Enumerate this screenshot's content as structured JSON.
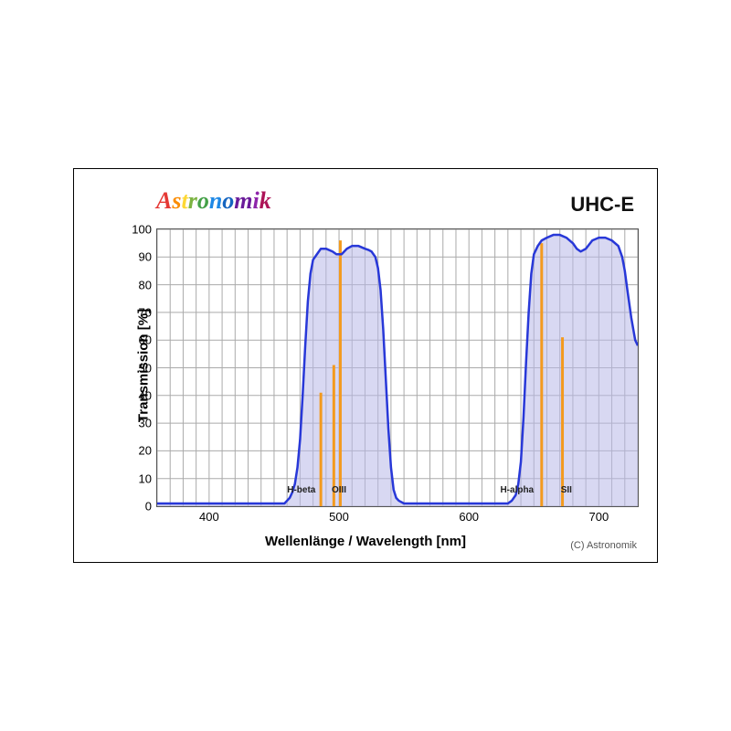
{
  "brand": {
    "text": "Astronomik",
    "colors": [
      "#e53935",
      "#fb8c00",
      "#fdd835",
      "#7cb342",
      "#43a047",
      "#1e88e5",
      "#1565c0",
      "#6a1b9a",
      "#8e24aa",
      "#ad1457"
    ]
  },
  "title_right": "UHC-E",
  "copyright": "(C) Astronomik",
  "axes": {
    "xlabel": "Wellenlänge / Wavelength [nm]",
    "ylabel": "Transmission [%]",
    "xlim": [
      360,
      730
    ],
    "ylim": [
      0,
      100
    ],
    "xticks_major": [
      400,
      500,
      600,
      700
    ],
    "xticks_minor_step": 10,
    "yticks": [
      0,
      10,
      20,
      30,
      40,
      50,
      60,
      70,
      80,
      90,
      100
    ],
    "grid_color": "#aaaaaa",
    "border_color": "#555555"
  },
  "transmission_curve": {
    "type": "line",
    "color": "#2838d8",
    "fill_color": "#b8b8e8",
    "fill_opacity": 0.55,
    "line_width": 2.5,
    "points": [
      [
        360,
        1
      ],
      [
        370,
        1
      ],
      [
        380,
        1
      ],
      [
        390,
        1
      ],
      [
        400,
        1
      ],
      [
        410,
        1
      ],
      [
        415,
        1
      ],
      [
        420,
        1
      ],
      [
        425,
        1
      ],
      [
        430,
        1
      ],
      [
        435,
        1
      ],
      [
        440,
        1
      ],
      [
        445,
        1
      ],
      [
        450,
        1
      ],
      [
        455,
        1
      ],
      [
        458,
        1
      ],
      [
        460,
        2
      ],
      [
        462,
        3
      ],
      [
        464,
        5
      ],
      [
        466,
        8
      ],
      [
        468,
        14
      ],
      [
        470,
        24
      ],
      [
        472,
        40
      ],
      [
        474,
        58
      ],
      [
        476,
        74
      ],
      [
        478,
        84
      ],
      [
        480,
        89
      ],
      [
        483,
        91
      ],
      [
        486,
        93
      ],
      [
        490,
        93
      ],
      [
        495,
        92
      ],
      [
        498,
        91
      ],
      [
        502,
        91
      ],
      [
        506,
        93
      ],
      [
        510,
        94
      ],
      [
        515,
        94
      ],
      [
        520,
        93
      ],
      [
        523,
        92.5
      ],
      [
        525,
        92
      ],
      [
        528,
        90
      ],
      [
        530,
        86
      ],
      [
        532,
        78
      ],
      [
        534,
        64
      ],
      [
        536,
        46
      ],
      [
        538,
        28
      ],
      [
        540,
        14
      ],
      [
        542,
        6
      ],
      [
        544,
        3
      ],
      [
        546,
        2
      ],
      [
        550,
        1
      ],
      [
        560,
        1
      ],
      [
        570,
        1
      ],
      [
        580,
        1
      ],
      [
        590,
        1
      ],
      [
        600,
        1
      ],
      [
        610,
        1
      ],
      [
        620,
        1
      ],
      [
        625,
        1
      ],
      [
        630,
        1
      ],
      [
        633,
        2
      ],
      [
        636,
        4
      ],
      [
        638,
        8
      ],
      [
        640,
        16
      ],
      [
        642,
        32
      ],
      [
        644,
        52
      ],
      [
        646,
        70
      ],
      [
        648,
        84
      ],
      [
        650,
        91
      ],
      [
        653,
        94
      ],
      [
        656,
        96
      ],
      [
        660,
        97
      ],
      [
        665,
        98
      ],
      [
        670,
        98
      ],
      [
        675,
        97
      ],
      [
        680,
        95
      ],
      [
        683,
        93
      ],
      [
        686,
        92
      ],
      [
        690,
        93
      ],
      [
        695,
        96
      ],
      [
        700,
        97
      ],
      [
        705,
        97
      ],
      [
        710,
        96
      ],
      [
        715,
        94
      ],
      [
        718,
        90
      ],
      [
        720,
        85
      ],
      [
        722,
        78
      ],
      [
        725,
        68
      ],
      [
        728,
        60
      ],
      [
        730,
        58
      ]
    ]
  },
  "emission_lines": {
    "type": "bar",
    "color": "#f39a1e",
    "line_width": 3,
    "lines": [
      {
        "name": "H-beta",
        "x": 486,
        "height": 41,
        "label_x": 471,
        "label_y": 5
      },
      {
        "name": "OIII",
        "x": 496,
        "height": 51,
        "label_x": 500,
        "label_y": 5
      },
      {
        "name": "OIII",
        "x": 501,
        "height": 96,
        "label_x": null,
        "label_y": null
      },
      {
        "name": "H-alpha",
        "x": 656,
        "height": 95,
        "label_x": 637,
        "label_y": 5
      },
      {
        "name": "SII",
        "x": 672,
        "height": 61,
        "label_x": 675,
        "label_y": 5
      }
    ]
  }
}
